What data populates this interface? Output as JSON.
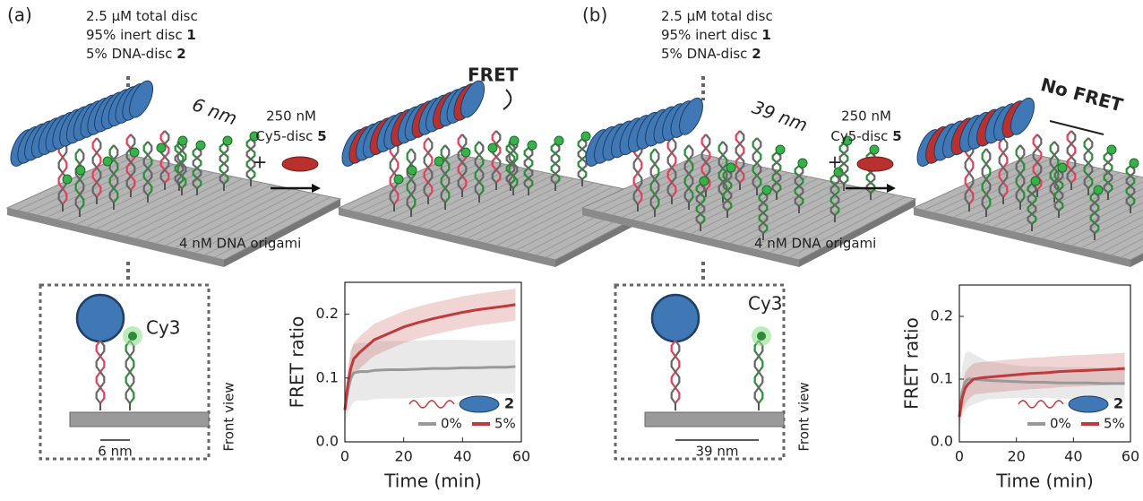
{
  "panels": [
    {
      "label": "(a)",
      "conditions": [
        {
          "text": "2.5 µM total disc"
        },
        {
          "text": "95% inert disc ",
          "bold": "1"
        },
        {
          "text": "5% DNA-disc ",
          "bold": "2"
        }
      ],
      "spacing_label": "6 nm",
      "reagent": {
        "amount": "250 nM",
        "name": "Cy5-disc ",
        "bold": "5"
      },
      "plus": "+",
      "result": "FRET",
      "origami": "4 nM DNA origami",
      "dye": "Cy3",
      "front_spacing": "6 nm",
      "front_view": "Front view"
    },
    {
      "label": "(b)",
      "conditions": [
        {
          "text": "2.5 µM total disc"
        },
        {
          "text": "95% inert disc ",
          "bold": "1"
        },
        {
          "text": "5% DNA-disc ",
          "bold": "2"
        }
      ],
      "spacing_label": "39 nm",
      "reagent": {
        "amount": "250 nM",
        "name": "Cy5-disc ",
        "bold": "5"
      },
      "plus": "+",
      "result": "No FRET",
      "origami": "4 nM DNA origami",
      "dye": "Cy3",
      "front_spacing": "39 nm",
      "front_view": "Front view"
    }
  ],
  "chart_data": [
    {
      "type": "line",
      "xlabel": "Time (min)",
      "ylabel": "FRET ratio",
      "x": [
        0,
        1,
        2,
        3,
        5,
        7.5,
        10,
        15,
        20,
        25,
        30,
        35,
        40,
        45,
        50,
        55,
        58
      ],
      "xlim": [
        0,
        60
      ],
      "xticks": [
        0,
        20,
        40,
        60
      ],
      "ylim": [
        0,
        0.25
      ],
      "yticks": [
        {
          "value": 0,
          "label": "0.0"
        },
        0.1,
        0.2
      ],
      "legend_label": "2",
      "series": [
        {
          "name": "0%",
          "color": "#999999",
          "values": [
            0.05,
            0.08,
            0.1,
            0.108,
            0.11,
            0.11,
            0.112,
            0.113,
            0.113,
            0.114,
            0.115,
            0.115,
            0.116,
            0.116,
            0.117,
            0.117,
            0.118
          ],
          "error": [
            0.02,
            0.035,
            0.045,
            0.045,
            0.045,
            0.045,
            0.045,
            0.045,
            0.045,
            0.045,
            0.045,
            0.045,
            0.044,
            0.043,
            0.042,
            0.042,
            0.042
          ]
        },
        {
          "name": "5%",
          "color": "#c0393b",
          "values": [
            0.05,
            0.09,
            0.115,
            0.13,
            0.14,
            0.15,
            0.16,
            0.17,
            0.18,
            0.187,
            0.193,
            0.198,
            0.203,
            0.207,
            0.21,
            0.213,
            0.215
          ],
          "error": [
            0.01,
            0.02,
            0.025,
            0.025,
            0.025,
            0.025,
            0.025,
            0.025,
            0.025,
            0.025,
            0.025,
            0.025,
            0.025,
            0.025,
            0.025,
            0.025,
            0.025
          ]
        }
      ]
    },
    {
      "type": "line",
      "xlabel": "Time (min)",
      "ylabel": "FRET ratio",
      "x": [
        0,
        1,
        2,
        3,
        5,
        7.5,
        10,
        15,
        20,
        25,
        30,
        35,
        40,
        45,
        50,
        55,
        58
      ],
      "xlim": [
        0,
        60
      ],
      "xticks": [
        0,
        20,
        40,
        60
      ],
      "ylim": [
        0,
        0.25
      ],
      "yticks": [
        {
          "value": 0,
          "label": "0.0"
        },
        0.1,
        0.2
      ],
      "legend_label": "2",
      "series": [
        {
          "name": "0%",
          "color": "#999999",
          "values": [
            0.04,
            0.08,
            0.095,
            0.1,
            0.1,
            0.099,
            0.098,
            0.097,
            0.096,
            0.095,
            0.095,
            0.094,
            0.094,
            0.094,
            0.093,
            0.093,
            0.093
          ],
          "error": [
            0.02,
            0.04,
            0.045,
            0.045,
            0.04,
            0.035,
            0.03,
            0.028,
            0.026,
            0.025,
            0.025,
            0.025,
            0.025,
            0.025,
            0.025,
            0.025,
            0.025
          ]
        },
        {
          "name": "5%",
          "color": "#c0393b",
          "values": [
            0.04,
            0.07,
            0.085,
            0.092,
            0.1,
            0.102,
            0.103,
            0.105,
            0.107,
            0.109,
            0.11,
            0.112,
            0.113,
            0.114,
            0.115,
            0.116,
            0.117
          ],
          "error": [
            0.01,
            0.02,
            0.025,
            0.025,
            0.025,
            0.025,
            0.025,
            0.025,
            0.025,
            0.025,
            0.025,
            0.025,
            0.025,
            0.025,
            0.025,
            0.025,
            0.025
          ]
        }
      ]
    }
  ]
}
